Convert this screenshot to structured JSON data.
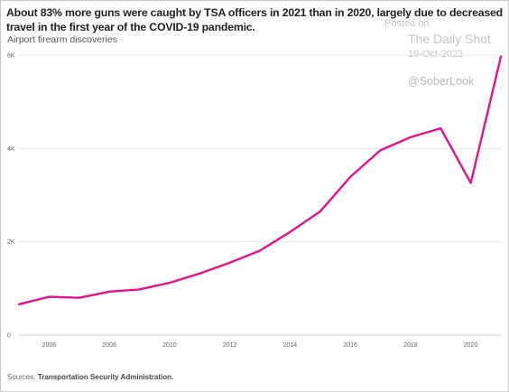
{
  "title": "About 83% more guns were caught by TSA officers in 2021 than in 2020, largely due to decreased travel in the first year of the COVID-19 pandemic.",
  "subtitle": "Airport firearm discoveries",
  "watermark": {
    "posted": "Posted on",
    "publication": "The Daily Shot",
    "date": "19-Oct-2022",
    "handle": "@SoberLook"
  },
  "source": {
    "label": "Sources:",
    "text": "Transportation Security Administration."
  },
  "colors": {
    "line": "#e0138c",
    "grid": "#e8e8e8",
    "axis": "#cfcfcf"
  },
  "chart_data": {
    "type": "line",
    "title": "About 83% more guns were caught by TSA officers in 2021 than in 2020, largely due to decreased travel in the first year of the COVID-19 pandemic.",
    "subtitle": "Airport firearm discoveries",
    "xlabel": "",
    "ylabel": "",
    "xlim": [
      2005,
      2021
    ],
    "ylim": [
      0,
      6000
    ],
    "x_ticks": [
      2006,
      2008,
      2010,
      2012,
      2014,
      2016,
      2018,
      2020
    ],
    "x_tick_labels": [
      "2006",
      "2008",
      "2010",
      "2012",
      "2014",
      "2016",
      "2018",
      "2020"
    ],
    "y_ticks": [
      0,
      2000,
      4000,
      6000
    ],
    "y_tick_labels": [
      "0",
      "2K",
      "4K",
      "6K"
    ],
    "grid": true,
    "series": [
      {
        "x": [
          2005,
          2006,
          2007,
          2008,
          2009,
          2010,
          2011,
          2012,
          2013,
          2014,
          2015,
          2016,
          2017,
          2018,
          2019,
          2020,
          2021
        ],
        "values": [
          660,
          820,
          800,
          930,
          980,
          1120,
          1320,
          1550,
          1810,
          2210,
          2650,
          3390,
          3960,
          4240,
          4430,
          3260,
          5970
        ]
      }
    ]
  }
}
